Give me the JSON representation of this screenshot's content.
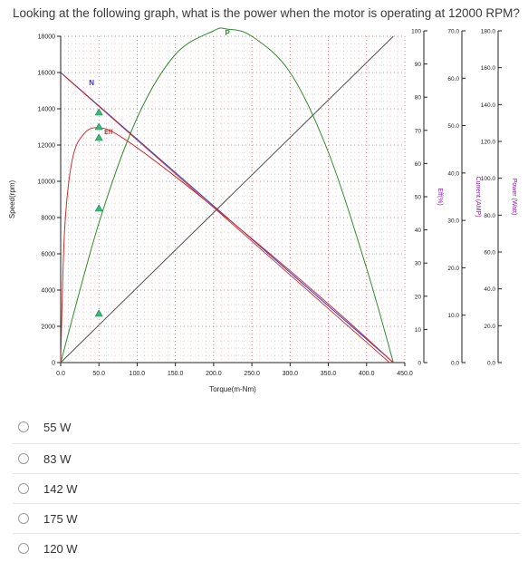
{
  "question": {
    "text": "Looking at the following graph, what is the power when the motor is operating at 12000 RPM?"
  },
  "options": [
    {
      "label": "55 W"
    },
    {
      "label": "83 W"
    },
    {
      "label": "142 W"
    },
    {
      "label": "175 W"
    },
    {
      "label": "120 W"
    }
  ],
  "colors": {
    "speed_line": "#2a3fc8",
    "current_line": "#505050",
    "power_curve": "#2e8b2e",
    "efficiency_curve": "#d12d2d",
    "grid_dot": "#d04040",
    "marker": "#3ab87a"
  },
  "chart_data": {
    "type": "line",
    "xlabel": "Torque(m-Nm)",
    "ylabel": "Speed(rpm)",
    "x_ticks": [
      "0.0",
      "50.0",
      "100.0",
      "150.0",
      "200.0",
      "250.0",
      "300.0",
      "350.0",
      "400.0",
      "450.0"
    ],
    "xlim": [
      0,
      450
    ],
    "y_speed_ticks": [
      "0",
      "2000",
      "4000",
      "6000",
      "8000",
      "10000",
      "12000",
      "14000",
      "16000",
      "18000"
    ],
    "ylim_speed": [
      0,
      18000
    ],
    "eff_axis": {
      "label": "Eff(%)",
      "ticks": [
        "0",
        "10",
        "20",
        "30",
        "40",
        "50",
        "60",
        "70",
        "80",
        "90",
        "100"
      ],
      "range": [
        0,
        100
      ]
    },
    "current_axis": {
      "label": "Current (AMP)",
      "ticks": [
        "0.0",
        "10.0",
        "20.0",
        "30.0",
        "40.0",
        "50.0",
        "60.0",
        "70.0"
      ],
      "range": [
        0,
        70
      ]
    },
    "power_axis": {
      "label": "Power (Watt)",
      "ticks": [
        "0.0",
        "20.0",
        "40.0",
        "60.0",
        "80.0",
        "100.0",
        "120.0",
        "140.0",
        "160.0",
        "180.0"
      ],
      "range": [
        0,
        180
      ]
    },
    "markers": [
      "N",
      "P",
      "Eff"
    ],
    "series": [
      {
        "key": "speed",
        "axis": "speed",
        "x": [
          0,
          435
        ],
        "y": [
          16000,
          0
        ]
      },
      {
        "key": "current",
        "axis": "current",
        "x": [
          0,
          435
        ],
        "y": [
          0,
          70
        ]
      },
      {
        "key": "power",
        "axis": "power",
        "x": [
          0,
          50,
          100,
          150,
          200,
          217,
          250,
          300,
          350,
          400,
          435
        ],
        "y": [
          0,
          77,
          135,
          170,
          183,
          184,
          180,
          160,
          116,
          52,
          0
        ]
      },
      {
        "key": "efficiency",
        "axis": "eff",
        "x": [
          0,
          5,
          15,
          30,
          50,
          80,
          150,
          250,
          350,
          435
        ],
        "y": [
          0,
          40,
          62,
          70,
          72,
          69,
          57,
          38,
          18,
          0
        ]
      }
    ]
  }
}
